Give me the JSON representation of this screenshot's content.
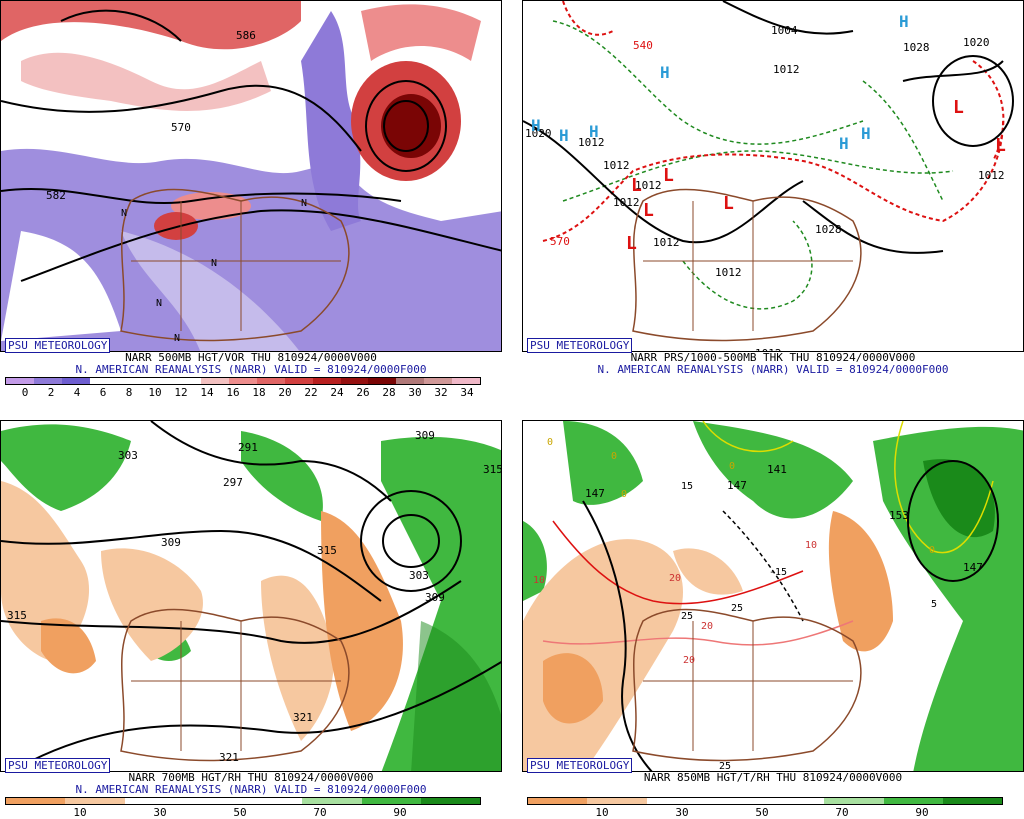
{
  "panels": [
    {
      "id": "p1",
      "title_line1": "NARR 500MB HGT/VOR THU 810924/0000V000",
      "title_line2": "N. AMERICAN REANALYSIS (NARR) VALID = 810924/0000F000",
      "badge": "PSU METEOROLOGY",
      "colorbar": [
        "#c39be8",
        "#8e7ad8",
        "#6e5ed0",
        "#ffffff",
        "#ffffff",
        "#ffffff",
        "#ffffff",
        "#f3c1c1",
        "#ed8d8d",
        "#e06565",
        "#d24040",
        "#b82020",
        "#951010",
        "#7a0505",
        "#b07878",
        "#d09898",
        "#f0b8c8"
      ],
      "ticks": [
        "0",
        "2",
        "4",
        "6",
        "8",
        "10",
        "12",
        "14",
        "16",
        "18",
        "20",
        "22",
        "24",
        "26",
        "28",
        "30",
        "32",
        "34"
      ],
      "labels": [
        "586",
        "570",
        "582",
        "N",
        "N",
        "N",
        "N",
        "N"
      ]
    },
    {
      "id": "p2",
      "title_line1": "NARR PRS/1000-500MB THK THU 810924/0000V000",
      "title_line2": "N. AMERICAN REANALYSIS (NARR) VALID = 810924/0000F000",
      "badge": "PSU METEOROLOGY",
      "colorbar": [],
      "ticks": [],
      "labels": [
        "540",
        "1004",
        "1012",
        "1028",
        "1020",
        "1020",
        "1012",
        "1012",
        "1012",
        "1012",
        "1012",
        "1012",
        "1028",
        "1012",
        "570",
        "1012",
        "H",
        "H",
        "H",
        "H",
        "H",
        "H",
        "H",
        "L",
        "L",
        "L",
        "L",
        "L",
        "L",
        "L"
      ]
    },
    {
      "id": "p3",
      "title_line1": "NARR 700MB HGT/RH THU 810924/0000V000",
      "title_line2": "N. AMERICAN REANALYSIS (NARR) VALID = 810924/0000F000",
      "badge": "PSU METEOROLOGY",
      "colorbar": [
        "#f0a060",
        "#f6c8a0",
        "#ffffff",
        "#ffffff",
        "#ffffff",
        "#a8e0a0",
        "#40b840",
        "#1a8a1a"
      ],
      "ticks": [
        "10",
        "30",
        "50",
        "70",
        "90"
      ],
      "labels": [
        "309",
        "303",
        "297",
        "291",
        "309",
        "315",
        "315",
        "315",
        "303",
        "309",
        "321",
        "321"
      ]
    },
    {
      "id": "p4",
      "title_line1": "NARR 850MB HGT/T/RH THU 810924/0000V000",
      "title_line2": "",
      "badge": "PSU METEOROLOGY",
      "colorbar": [
        "#f0a060",
        "#f6c8a0",
        "#ffffff",
        "#ffffff",
        "#ffffff",
        "#a8e0a0",
        "#40b840",
        "#1a8a1a"
      ],
      "ticks": [
        "10",
        "30",
        "50",
        "70",
        "90"
      ],
      "labels": [
        "0",
        "0",
        "0",
        "0",
        "0",
        "147",
        "147",
        "147",
        "141",
        "153",
        "15",
        "-15",
        "10",
        "10",
        "20",
        "20",
        "20",
        "25",
        "25",
        "25",
        "5"
      ]
    }
  ]
}
